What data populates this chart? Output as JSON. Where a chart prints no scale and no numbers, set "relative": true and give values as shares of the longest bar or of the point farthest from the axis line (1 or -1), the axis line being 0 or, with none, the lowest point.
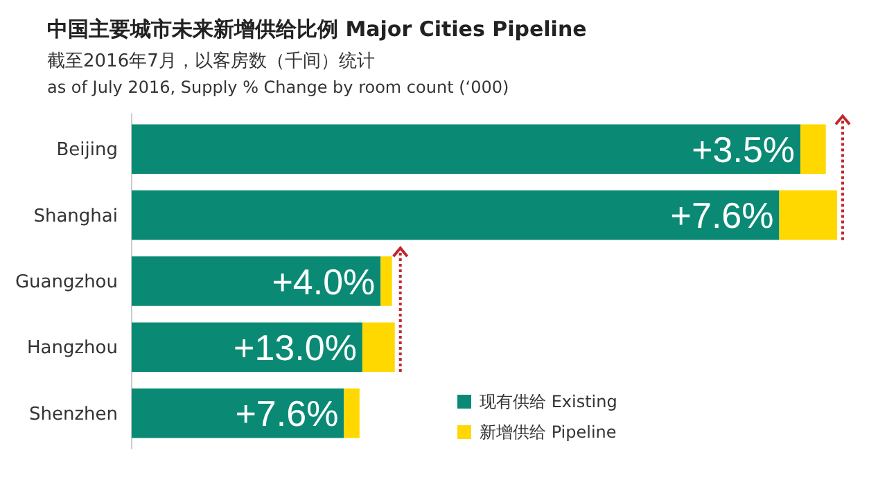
{
  "chart_data": {
    "type": "bar",
    "orientation": "horizontal",
    "stacked": true,
    "relative": true,
    "title": "中国主要城市未来新增供给比例 Major Cities Pipeline",
    "subtitle": "截至2016年7月，以客房数（千间）统计\nas of July 2016, Supply % Change by room count (‘000)",
    "categories": [
      "Beijing",
      "Shanghai",
      "Guangzhou",
      "Hangzhou",
      "Shenzhen"
    ],
    "series": [
      {
        "name": "现有供给 Existing",
        "color": "#0a8a74",
        "values": [
          0.948,
          0.918,
          0.353,
          0.327,
          0.301
        ]
      },
      {
        "name": "新增供给 Pipeline",
        "color": "#ffd800",
        "values": [
          0.036,
          0.082,
          0.016,
          0.046,
          0.022
        ]
      }
    ],
    "annotations": [
      "+3.5%",
      "+7.6%",
      "+4.0%",
      "+13.0%",
      "+7.6%"
    ],
    "legend": "bottom right",
    "grid": false
  }
}
